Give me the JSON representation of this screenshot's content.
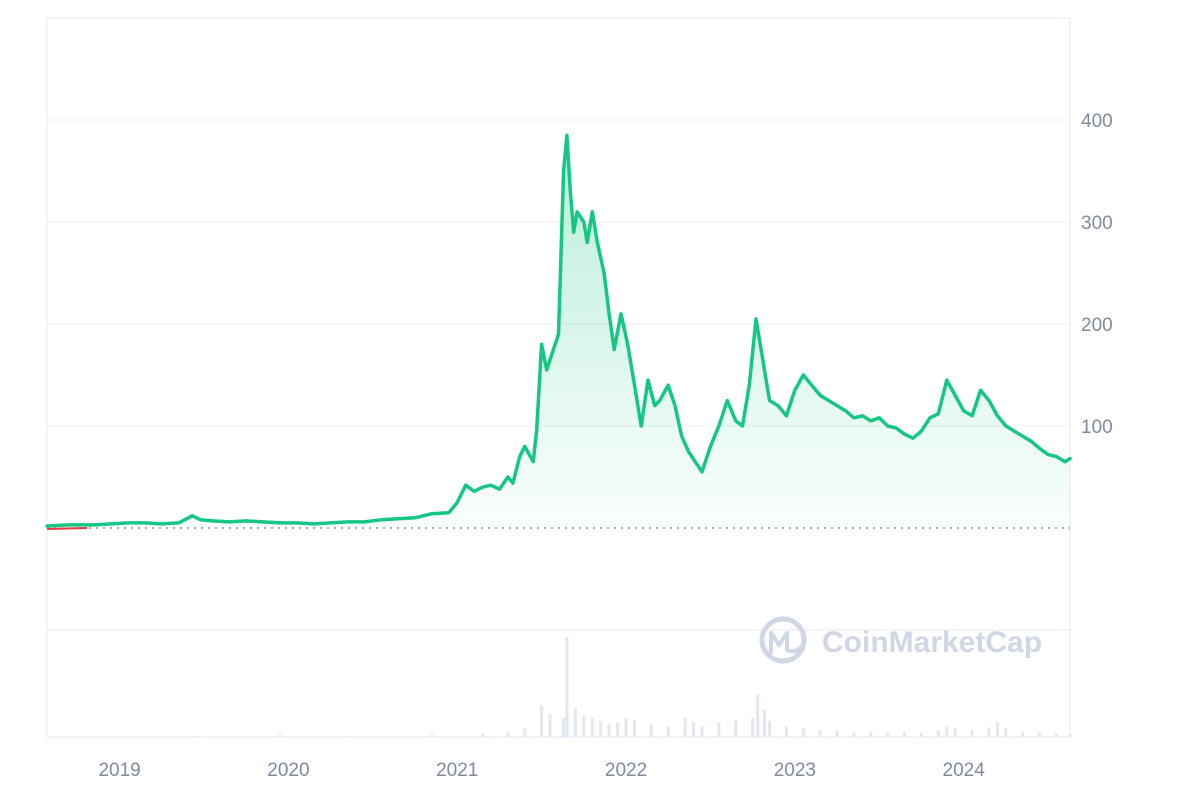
{
  "chart_data": {
    "type": "area",
    "title": "",
    "xlabel": "",
    "ylabel": "",
    "xlim": [
      2018.62,
      2024.68
    ],
    "ylim": [
      -100,
      500
    ],
    "y_ticks": [
      400,
      300,
      200,
      100
    ],
    "y_tick_labels": [
      "400",
      "300",
      "200",
      "100"
    ],
    "x_ticks": [
      2019,
      2020,
      2021,
      2022,
      2023,
      2024
    ],
    "x_tick_labels": [
      "2019",
      "2020",
      "2021",
      "2022",
      "2023",
      "2024"
    ],
    "baseline": 0,
    "grid": true,
    "series": [
      {
        "color": "#16c784",
        "points": [
          [
            2018.62,
            2
          ],
          [
            2018.75,
            3
          ],
          [
            2018.9,
            3
          ],
          [
            2019.0,
            4
          ],
          [
            2019.1,
            5
          ],
          [
            2019.2,
            5
          ],
          [
            2019.3,
            4
          ],
          [
            2019.4,
            5
          ],
          [
            2019.48,
            12
          ],
          [
            2019.53,
            8
          ],
          [
            2019.6,
            7
          ],
          [
            2019.7,
            6
          ],
          [
            2019.8,
            7
          ],
          [
            2019.9,
            6
          ],
          [
            2020.0,
            5
          ],
          [
            2020.1,
            5
          ],
          [
            2020.2,
            4
          ],
          [
            2020.3,
            5
          ],
          [
            2020.4,
            6
          ],
          [
            2020.5,
            6
          ],
          [
            2020.6,
            8
          ],
          [
            2020.7,
            9
          ],
          [
            2020.8,
            10
          ],
          [
            2020.9,
            14
          ],
          [
            2021.0,
            15
          ],
          [
            2021.05,
            25
          ],
          [
            2021.1,
            42
          ],
          [
            2021.15,
            36
          ],
          [
            2021.2,
            40
          ],
          [
            2021.25,
            42
          ],
          [
            2021.3,
            38
          ],
          [
            2021.35,
            50
          ],
          [
            2021.38,
            44
          ],
          [
            2021.42,
            70
          ],
          [
            2021.45,
            80
          ],
          [
            2021.5,
            65
          ],
          [
            2021.52,
            95
          ],
          [
            2021.55,
            180
          ],
          [
            2021.58,
            155
          ],
          [
            2021.62,
            175
          ],
          [
            2021.65,
            190
          ],
          [
            2021.68,
            350
          ],
          [
            2021.7,
            385
          ],
          [
            2021.72,
            330
          ],
          [
            2021.74,
            290
          ],
          [
            2021.76,
            310
          ],
          [
            2021.8,
            300
          ],
          [
            2021.82,
            280
          ],
          [
            2021.85,
            310
          ],
          [
            2021.88,
            280
          ],
          [
            2021.92,
            250
          ],
          [
            2021.95,
            210
          ],
          [
            2021.98,
            175
          ],
          [
            2022.02,
            210
          ],
          [
            2022.06,
            180
          ],
          [
            2022.1,
            140
          ],
          [
            2022.14,
            100
          ],
          [
            2022.18,
            145
          ],
          [
            2022.22,
            120
          ],
          [
            2022.25,
            125
          ],
          [
            2022.3,
            140
          ],
          [
            2022.34,
            120
          ],
          [
            2022.38,
            90
          ],
          [
            2022.42,
            75
          ],
          [
            2022.46,
            65
          ],
          [
            2022.5,
            55
          ],
          [
            2022.55,
            80
          ],
          [
            2022.6,
            100
          ],
          [
            2022.65,
            125
          ],
          [
            2022.7,
            105
          ],
          [
            2022.74,
            100
          ],
          [
            2022.78,
            140
          ],
          [
            2022.82,
            205
          ],
          [
            2022.85,
            175
          ],
          [
            2022.9,
            125
          ],
          [
            2022.95,
            120
          ],
          [
            2023.0,
            110
          ],
          [
            2023.05,
            135
          ],
          [
            2023.1,
            150
          ],
          [
            2023.15,
            140
          ],
          [
            2023.2,
            130
          ],
          [
            2023.25,
            125
          ],
          [
            2023.3,
            120
          ],
          [
            2023.35,
            115
          ],
          [
            2023.4,
            108
          ],
          [
            2023.45,
            110
          ],
          [
            2023.5,
            105
          ],
          [
            2023.55,
            108
          ],
          [
            2023.6,
            100
          ],
          [
            2023.65,
            98
          ],
          [
            2023.7,
            92
          ],
          [
            2023.75,
            88
          ],
          [
            2023.8,
            95
          ],
          [
            2023.85,
            108
          ],
          [
            2023.9,
            112
          ],
          [
            2023.95,
            145
          ],
          [
            2024.0,
            130
          ],
          [
            2024.05,
            115
          ],
          [
            2024.1,
            110
          ],
          [
            2024.15,
            135
          ],
          [
            2024.2,
            125
          ],
          [
            2024.25,
            110
          ],
          [
            2024.3,
            100
          ],
          [
            2024.35,
            95
          ],
          [
            2024.4,
            90
          ],
          [
            2024.45,
            85
          ],
          [
            2024.5,
            78
          ],
          [
            2024.55,
            72
          ],
          [
            2024.6,
            70
          ],
          [
            2024.65,
            65
          ],
          [
            2024.68,
            68
          ]
        ]
      }
    ],
    "volume": [
      [
        2019.5,
        1
      ],
      [
        2020.0,
        2
      ],
      [
        2020.4,
        1
      ],
      [
        2020.9,
        2
      ],
      [
        2021.2,
        3
      ],
      [
        2021.35,
        5
      ],
      [
        2021.45,
        8
      ],
      [
        2021.55,
        30
      ],
      [
        2021.6,
        22
      ],
      [
        2021.68,
        18
      ],
      [
        2021.7,
        95
      ],
      [
        2021.75,
        28
      ],
      [
        2021.8,
        20
      ],
      [
        2021.85,
        18
      ],
      [
        2021.9,
        15
      ],
      [
        2021.95,
        12
      ],
      [
        2022.0,
        14
      ],
      [
        2022.05,
        18
      ],
      [
        2022.1,
        16
      ],
      [
        2022.2,
        12
      ],
      [
        2022.3,
        10
      ],
      [
        2022.4,
        18
      ],
      [
        2022.45,
        14
      ],
      [
        2022.5,
        10
      ],
      [
        2022.6,
        14
      ],
      [
        2022.7,
        16
      ],
      [
        2022.8,
        18
      ],
      [
        2022.83,
        40
      ],
      [
        2022.87,
        26
      ],
      [
        2022.9,
        15
      ],
      [
        2023.0,
        10
      ],
      [
        2023.1,
        8
      ],
      [
        2023.2,
        7
      ],
      [
        2023.3,
        6
      ],
      [
        2023.4,
        5
      ],
      [
        2023.5,
        5
      ],
      [
        2023.6,
        4
      ],
      [
        2023.7,
        5
      ],
      [
        2023.8,
        4
      ],
      [
        2023.9,
        6
      ],
      [
        2023.95,
        10
      ],
      [
        2024.0,
        8
      ],
      [
        2024.1,
        7
      ],
      [
        2024.2,
        9
      ],
      [
        2024.25,
        14
      ],
      [
        2024.3,
        8
      ],
      [
        2024.4,
        5
      ],
      [
        2024.5,
        4
      ],
      [
        2024.6,
        3
      ],
      [
        2024.68,
        3
      ]
    ]
  },
  "watermark": {
    "text": "CoinMarketCap",
    "color": "#cfd6e4"
  }
}
